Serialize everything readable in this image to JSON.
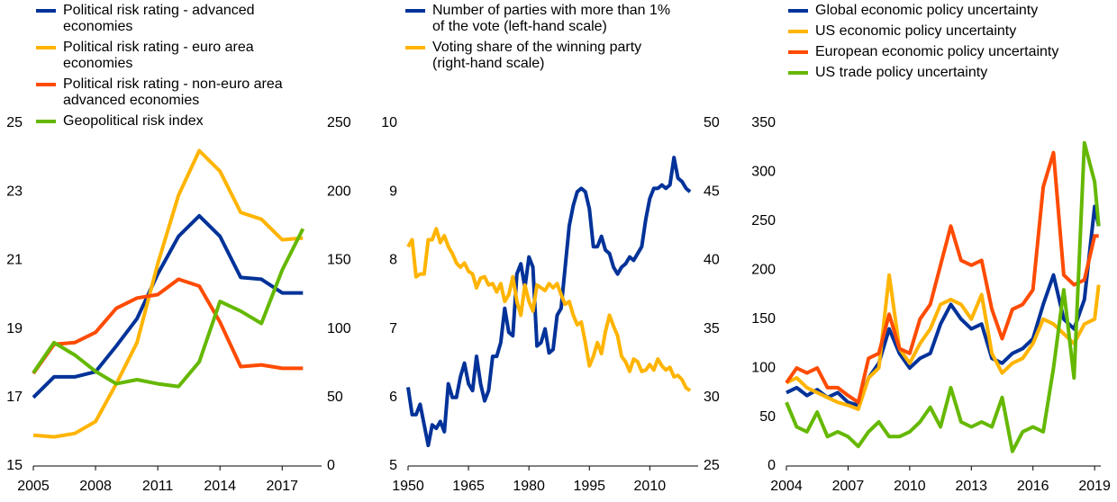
{
  "chart_data": [
    {
      "type": "line",
      "x": [
        2005,
        2006,
        2007,
        2008,
        2009,
        2010,
        2011,
        2012,
        2013,
        2014,
        2015,
        2016,
        2017,
        2018
      ],
      "xlim": [
        2005,
        2018.9
      ],
      "xticks": [
        2005,
        2008,
        2011,
        2014,
        2017
      ],
      "ylim": [
        15,
        25
      ],
      "yticks": [
        15,
        17,
        19,
        21,
        23,
        25
      ],
      "y2lim": [
        0,
        250
      ],
      "y2ticks": [
        0,
        50,
        100,
        150,
        200,
        250
      ],
      "series": [
        {
          "name": "Political risk rating - advanced economies",
          "color": "#003299",
          "values": [
            17.0,
            17.6,
            17.6,
            17.75,
            18.5,
            19.3,
            20.6,
            21.7,
            22.3,
            21.7,
            20.5,
            20.45,
            20.05,
            20.05
          ]
        },
        {
          "name": "Political risk rating - euro area economies",
          "color": "#ffb400",
          "values": [
            15.9,
            15.85,
            15.95,
            16.3,
            17.4,
            18.6,
            20.9,
            22.9,
            24.2,
            23.6,
            22.4,
            22.2,
            21.6,
            21.65
          ]
        },
        {
          "name": "Political risk rating - non-euro area advanced economies",
          "color": "#ff4b00",
          "values": [
            17.7,
            18.55,
            18.6,
            18.9,
            19.6,
            19.9,
            20.0,
            20.45,
            20.25,
            19.2,
            17.9,
            17.95,
            17.85,
            17.85
          ]
        },
        {
          "name": "Geopolitical risk index",
          "color": "#65b800",
          "axis": "y2",
          "values": [
            68,
            90,
            81,
            69,
            60,
            63,
            60,
            58,
            76,
            120,
            113,
            104,
            143,
            173
          ]
        }
      ]
    },
    {
      "type": "line",
      "x": [
        1950,
        1951,
        1952,
        1953,
        1954,
        1955,
        1956,
        1957,
        1958,
        1959,
        1960,
        1961,
        1962,
        1963,
        1964,
        1965,
        1966,
        1967,
        1968,
        1969,
        1970,
        1971,
        1972,
        1973,
        1974,
        1975,
        1976,
        1977,
        1978,
        1979,
        1980,
        1981,
        1982,
        1983,
        1984,
        1985,
        1986,
        1987,
        1988,
        1989,
        1990,
        1991,
        1992,
        1993,
        1994,
        1995,
        1996,
        1997,
        1998,
        1999,
        2000,
        2001,
        2002,
        2003,
        2004,
        2005,
        2006,
        2007,
        2008,
        2009,
        2010,
        2011,
        2012,
        2013,
        2014,
        2015,
        2016,
        2017,
        2018,
        2019,
        2020
      ],
      "xlim": [
        1950,
        2022
      ],
      "xticks": [
        1950,
        1965,
        1980,
        1995,
        2010
      ],
      "ylim": [
        5,
        10
      ],
      "yticks": [
        5,
        6,
        7,
        8,
        9,
        10
      ],
      "y2lim": [
        25,
        50
      ],
      "y2ticks": [
        25,
        30,
        35,
        40,
        45,
        50
      ],
      "series": [
        {
          "name": "Number of parties with more than 1% of the vote (left-hand scale)",
          "color": "#003299",
          "values": [
            6.15,
            5.75,
            5.75,
            5.9,
            5.6,
            5.3,
            5.6,
            5.55,
            5.65,
            5.5,
            6.2,
            6.0,
            6.0,
            6.3,
            6.5,
            6.2,
            6.1,
            6.6,
            6.2,
            5.95,
            6.1,
            6.6,
            6.6,
            6.8,
            7.3,
            6.95,
            6.9,
            7.8,
            7.95,
            7.6,
            8.05,
            7.9,
            6.75,
            6.8,
            7.0,
            6.65,
            6.7,
            7.2,
            7.3,
            7.9,
            8.5,
            8.8,
            9.0,
            9.05,
            9.0,
            8.75,
            8.2,
            8.2,
            8.35,
            8.15,
            8.1,
            7.9,
            7.8,
            7.9,
            7.95,
            8.05,
            8.0,
            8.1,
            8.2,
            8.6,
            8.9,
            9.05,
            9.05,
            9.1,
            9.05,
            9.1,
            9.5,
            9.2,
            9.15,
            9.05,
            9.0
          ]
        },
        {
          "name": "Voting share of the winning party (right-hand scale)",
          "color": "#ffb400",
          "axis": "y2",
          "values": [
            41,
            41.5,
            38.8,
            39.0,
            39.0,
            41.5,
            41.5,
            42.3,
            41.3,
            41.8,
            41.0,
            40.5,
            39.8,
            39.5,
            39.8,
            39.2,
            39.0,
            38.0,
            38.7,
            38.8,
            38.2,
            38.3,
            37.7,
            38.3,
            37.0,
            37.5,
            38.8,
            37.0,
            36.0,
            38.2,
            37.0,
            36.3,
            38.2,
            38.0,
            37.8,
            38.3,
            38.0,
            38.3,
            37.5,
            36.8,
            37.0,
            36.0,
            35.3,
            35.5,
            34.0,
            32.3,
            33.0,
            34.0,
            33.2,
            34.8,
            36.0,
            35.2,
            34.5,
            33.0,
            32.6,
            31.9,
            32.8,
            32.6,
            31.9,
            32.0,
            32.4,
            32.0,
            32.8,
            32.3,
            32.0,
            32.2,
            31.5,
            31.6,
            31.3,
            30.7,
            30.5
          ]
        }
      ]
    },
    {
      "type": "line",
      "x": [
        2004,
        2004.5,
        2005,
        2005.5,
        2006,
        2006.5,
        2007,
        2007.5,
        2008,
        2008.5,
        2009,
        2009.5,
        2010,
        2010.5,
        2011,
        2011.5,
        2012,
        2012.5,
        2013,
        2013.5,
        2014,
        2014.5,
        2015,
        2015.5,
        2016,
        2016.5,
        2017,
        2017.5,
        2018,
        2018.5,
        2019,
        2019.2
      ],
      "xlim": [
        2004,
        2019.3
      ],
      "xticks": [
        2004,
        2007,
        2010,
        2013,
        2016,
        2019
      ],
      "ylim": [
        0,
        350
      ],
      "yticks": [
        0,
        50,
        100,
        150,
        200,
        250,
        300,
        350
      ],
      "series": [
        {
          "name": "Global economic policy uncertainty",
          "color": "#003299",
          "values": [
            75,
            80,
            72,
            78,
            70,
            75,
            65,
            62,
            90,
            105,
            140,
            115,
            100,
            110,
            115,
            145,
            165,
            150,
            140,
            145,
            110,
            105,
            115,
            120,
            130,
            165,
            195,
            150,
            140,
            170,
            265,
            245
          ]
        },
        {
          "name": "US economic policy uncertainty",
          "color": "#ffb400",
          "values": [
            85,
            90,
            80,
            75,
            70,
            65,
            62,
            58,
            90,
            100,
            195,
            120,
            105,
            125,
            140,
            165,
            170,
            165,
            150,
            175,
            115,
            95,
            105,
            110,
            125,
            150,
            145,
            135,
            125,
            145,
            150,
            185
          ]
        },
        {
          "name": "European economic policy uncertainty",
          "color": "#ff4b00",
          "values": [
            85,
            100,
            95,
            100,
            80,
            80,
            72,
            65,
            110,
            115,
            155,
            120,
            115,
            150,
            165,
            205,
            245,
            210,
            205,
            210,
            160,
            130,
            160,
            165,
            180,
            285,
            320,
            195,
            185,
            190,
            235,
            235
          ]
        },
        {
          "name": "US trade policy uncertainty",
          "color": "#65b800",
          "values": [
            65,
            40,
            35,
            55,
            30,
            35,
            30,
            20,
            35,
            45,
            30,
            30,
            35,
            45,
            60,
            40,
            80,
            45,
            40,
            45,
            40,
            70,
            15,
            35,
            40,
            35,
            100,
            180,
            90,
            330,
            290,
            245
          ]
        }
      ]
    }
  ]
}
